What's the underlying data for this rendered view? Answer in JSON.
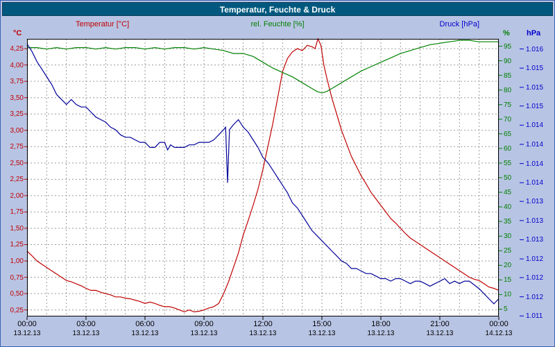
{
  "window": {
    "title": "Temperatur, Feuchte & Druck"
  },
  "chart_data": {
    "type": "line",
    "title": "Temperatur, Feuchte & Druck",
    "grid": true,
    "x_range": [
      0,
      24
    ],
    "axes": {
      "temperature": {
        "title": "Temperatur [°C]",
        "unit": "°C",
        "color": "#c00000",
        "range": [
          0.15,
          4.4
        ],
        "tick_labels": [
          "4,25",
          "4,00",
          "3,75",
          "3,50",
          "3,25",
          "3,00",
          "2,75",
          "2,50",
          "2,25",
          "2,00",
          "1,75",
          "1,50",
          "1,25",
          "1,00",
          "0,75",
          "0,50",
          "0,25"
        ],
        "tick_values": [
          4.25,
          4,
          3.75,
          3.5,
          3.25,
          3,
          2.75,
          2.5,
          2.25,
          2,
          1.75,
          1.5,
          1.25,
          1,
          0.75,
          0.5,
          0.25
        ]
      },
      "humidity": {
        "title": "rel. Feuchte [%]",
        "unit": "%",
        "color": "#008000",
        "range": [
          2.5,
          97.5
        ],
        "tick_labels": [
          "95",
          "90",
          "85",
          "80",
          "75",
          "70",
          "65",
          "60",
          "55",
          "50",
          "45",
          "40",
          "35",
          "30",
          "25",
          "20",
          "15",
          "10",
          "5"
        ],
        "tick_values": [
          95,
          90,
          85,
          80,
          75,
          70,
          65,
          60,
          55,
          50,
          45,
          40,
          35,
          30,
          25,
          20,
          15,
          10,
          5
        ]
      },
      "pressure": {
        "title": "Druck [hPa]",
        "unit": "hPa",
        "color": "#0000cc",
        "range": [
          1010.85,
          1016.35
        ],
        "tick_labels": [
          "1.016",
          "1.015",
          "1.015",
          "1.015",
          "1.014",
          "1.014",
          "1.014",
          "1.014",
          "1.013",
          "1.013",
          "1.013",
          "1.012",
          "1.012",
          "1.012",
          "1.011"
        ],
        "tick_values": [
          1016.15,
          1015.77,
          1015.39,
          1015.02,
          1014.64,
          1014.26,
          1013.88,
          1013.5,
          1013.13,
          1012.75,
          1012.37,
          1011.99,
          1011.62,
          1011.24,
          1010.86
        ]
      },
      "time": {
        "tick_hours": [
          0,
          3,
          6,
          9,
          12,
          15,
          18,
          21,
          24
        ],
        "tick_times": [
          "00:00",
          "03:00",
          "06:00",
          "09:00",
          "12:00",
          "15:00",
          "18:00",
          "21:00",
          "00:00"
        ],
        "tick_dates": [
          "13.12.13",
          "13.12.13",
          "13.12.13",
          "13.12.13",
          "13.12.13",
          "13.12.13",
          "13.12.13",
          "13.12.13",
          "14.12.13"
        ]
      }
    },
    "series": [
      {
        "name": "Temperatur",
        "axis": "temperature",
        "color": "#c00000",
        "points": [
          [
            0,
            1.15
          ],
          [
            0.25,
            1.08
          ],
          [
            0.5,
            1.0
          ],
          [
            0.75,
            0.95
          ],
          [
            1,
            0.9
          ],
          [
            1.25,
            0.85
          ],
          [
            1.5,
            0.8
          ],
          [
            1.75,
            0.75
          ],
          [
            2,
            0.7
          ],
          [
            2.25,
            0.68
          ],
          [
            2.5,
            0.65
          ],
          [
            2.75,
            0.62
          ],
          [
            3,
            0.58
          ],
          [
            3.25,
            0.55
          ],
          [
            3.5,
            0.55
          ],
          [
            3.75,
            0.52
          ],
          [
            4,
            0.5
          ],
          [
            4.25,
            0.48
          ],
          [
            4.5,
            0.45
          ],
          [
            4.75,
            0.45
          ],
          [
            5,
            0.43
          ],
          [
            5.25,
            0.42
          ],
          [
            5.5,
            0.4
          ],
          [
            5.75,
            0.38
          ],
          [
            6,
            0.35
          ],
          [
            6.25,
            0.37
          ],
          [
            6.5,
            0.35
          ],
          [
            6.75,
            0.32
          ],
          [
            7,
            0.3
          ],
          [
            7.25,
            0.3
          ],
          [
            7.5,
            0.28
          ],
          [
            7.75,
            0.25
          ],
          [
            8,
            0.22
          ],
          [
            8.25,
            0.25
          ],
          [
            8.5,
            0.22
          ],
          [
            8.75,
            0.23
          ],
          [
            9,
            0.25
          ],
          [
            9.25,
            0.28
          ],
          [
            9.5,
            0.3
          ],
          [
            9.75,
            0.35
          ],
          [
            10,
            0.5
          ],
          [
            10.25,
            0.68
          ],
          [
            10.5,
            0.9
          ],
          [
            10.75,
            1.12
          ],
          [
            11,
            1.4
          ],
          [
            11.25,
            1.62
          ],
          [
            11.5,
            1.85
          ],
          [
            11.75,
            2.1
          ],
          [
            12,
            2.4
          ],
          [
            12.25,
            2.75
          ],
          [
            12.5,
            3.1
          ],
          [
            12.75,
            3.5
          ],
          [
            13,
            3.9
          ],
          [
            13.25,
            4.1
          ],
          [
            13.5,
            4.2
          ],
          [
            13.75,
            4.25
          ],
          [
            14,
            4.22
          ],
          [
            14.25,
            4.3
          ],
          [
            14.5,
            4.28
          ],
          [
            14.65,
            4.25
          ],
          [
            14.8,
            4.4
          ],
          [
            14.95,
            4.3
          ],
          [
            15.1,
            4.0
          ],
          [
            15.25,
            3.8
          ],
          [
            15.5,
            3.5
          ],
          [
            15.75,
            3.25
          ],
          [
            16,
            3.0
          ],
          [
            16.25,
            2.8
          ],
          [
            16.5,
            2.6
          ],
          [
            16.75,
            2.45
          ],
          [
            17,
            2.3
          ],
          [
            17.25,
            2.18
          ],
          [
            17.5,
            2.05
          ],
          [
            17.75,
            1.95
          ],
          [
            18,
            1.85
          ],
          [
            18.25,
            1.75
          ],
          [
            18.5,
            1.65
          ],
          [
            18.75,
            1.58
          ],
          [
            19,
            1.5
          ],
          [
            19.25,
            1.42
          ],
          [
            19.5,
            1.35
          ],
          [
            19.75,
            1.3
          ],
          [
            20,
            1.25
          ],
          [
            20.25,
            1.2
          ],
          [
            20.5,
            1.15
          ],
          [
            20.75,
            1.1
          ],
          [
            21,
            1.05
          ],
          [
            21.25,
            1.0
          ],
          [
            21.5,
            0.95
          ],
          [
            21.75,
            0.9
          ],
          [
            22,
            0.85
          ],
          [
            22.25,
            0.8
          ],
          [
            22.5,
            0.75
          ],
          [
            22.75,
            0.72
          ],
          [
            23,
            0.7
          ],
          [
            23.25,
            0.65
          ],
          [
            23.5,
            0.6
          ],
          [
            23.75,
            0.58
          ],
          [
            24,
            0.55
          ]
        ]
      },
      {
        "name": "rel. Feuchte",
        "axis": "humidity",
        "color": "#008000",
        "points": [
          [
            0,
            94.5
          ],
          [
            0.5,
            94.5
          ],
          [
            1,
            94
          ],
          [
            1.5,
            94.5
          ],
          [
            2,
            94
          ],
          [
            2.5,
            94.5
          ],
          [
            3,
            94.5
          ],
          [
            3.5,
            94
          ],
          [
            4,
            94.5
          ],
          [
            4.5,
            94
          ],
          [
            5,
            94.5
          ],
          [
            5.5,
            94.5
          ],
          [
            6,
            94
          ],
          [
            6.5,
            94.5
          ],
          [
            7,
            94
          ],
          [
            7.5,
            94.5
          ],
          [
            8,
            94.5
          ],
          [
            8.5,
            94
          ],
          [
            9,
            94.5
          ],
          [
            9.5,
            94
          ],
          [
            10,
            93.5
          ],
          [
            10.5,
            92.5
          ],
          [
            11,
            92.5
          ],
          [
            11.5,
            91.5
          ],
          [
            12,
            89.5
          ],
          [
            12.5,
            87.5
          ],
          [
            13,
            86
          ],
          [
            13.5,
            84.5
          ],
          [
            14,
            82.5
          ],
          [
            14.5,
            80.5
          ],
          [
            14.75,
            79.5
          ],
          [
            15,
            79
          ],
          [
            15.25,
            79.5
          ],
          [
            15.5,
            80.5
          ],
          [
            16,
            82.5
          ],
          [
            16.5,
            84.5
          ],
          [
            17,
            86.5
          ],
          [
            17.5,
            88
          ],
          [
            18,
            89.5
          ],
          [
            18.5,
            91
          ],
          [
            19,
            92.5
          ],
          [
            19.5,
            93.5
          ],
          [
            20,
            94.5
          ],
          [
            20.5,
            95.5
          ],
          [
            21,
            96
          ],
          [
            21.5,
            96.5
          ],
          [
            22,
            97
          ],
          [
            22.5,
            97
          ],
          [
            23,
            96.5
          ],
          [
            23.5,
            96.5
          ],
          [
            24,
            96.5
          ]
        ]
      },
      {
        "name": "Druck",
        "axis": "pressure",
        "color": "#000099",
        "points": [
          [
            0,
            1016.25
          ],
          [
            0.25,
            1016.1
          ],
          [
            0.5,
            1015.9
          ],
          [
            0.75,
            1015.75
          ],
          [
            1,
            1015.6
          ],
          [
            1.25,
            1015.45
          ],
          [
            1.5,
            1015.25
          ],
          [
            1.75,
            1015.15
          ],
          [
            2,
            1015.05
          ],
          [
            2.25,
            1015.15
          ],
          [
            2.5,
            1015.05
          ],
          [
            2.75,
            1015.0
          ],
          [
            3,
            1015.0
          ],
          [
            3.25,
            1014.9
          ],
          [
            3.5,
            1014.8
          ],
          [
            3.75,
            1014.75
          ],
          [
            4,
            1014.7
          ],
          [
            4.25,
            1014.6
          ],
          [
            4.5,
            1014.55
          ],
          [
            4.75,
            1014.45
          ],
          [
            5,
            1014.4
          ],
          [
            5.25,
            1014.4
          ],
          [
            5.5,
            1014.35
          ],
          [
            5.75,
            1014.3
          ],
          [
            6,
            1014.3
          ],
          [
            6.25,
            1014.2
          ],
          [
            6.5,
            1014.2
          ],
          [
            6.75,
            1014.3
          ],
          [
            7,
            1014.3
          ],
          [
            7.15,
            1014.15
          ],
          [
            7.3,
            1014.25
          ],
          [
            7.5,
            1014.2
          ],
          [
            7.75,
            1014.2
          ],
          [
            8,
            1014.2
          ],
          [
            8.25,
            1014.25
          ],
          [
            8.5,
            1014.25
          ],
          [
            8.75,
            1014.3
          ],
          [
            9,
            1014.3
          ],
          [
            9.25,
            1014.3
          ],
          [
            9.5,
            1014.35
          ],
          [
            9.75,
            1014.45
          ],
          [
            10,
            1014.55
          ],
          [
            10.1,
            1014.6
          ],
          [
            10.2,
            1013.5
          ],
          [
            10.3,
            1014.55
          ],
          [
            10.5,
            1014.65
          ],
          [
            10.75,
            1014.75
          ],
          [
            11,
            1014.6
          ],
          [
            11.25,
            1014.5
          ],
          [
            11.5,
            1014.35
          ],
          [
            11.75,
            1014.2
          ],
          [
            12,
            1014.0
          ],
          [
            12.25,
            1013.9
          ],
          [
            12.5,
            1013.75
          ],
          [
            12.75,
            1013.6
          ],
          [
            13,
            1013.45
          ],
          [
            13.25,
            1013.3
          ],
          [
            13.5,
            1013.1
          ],
          [
            13.75,
            1013.0
          ],
          [
            14,
            1012.85
          ],
          [
            14.25,
            1012.7
          ],
          [
            14.5,
            1012.55
          ],
          [
            14.75,
            1012.45
          ],
          [
            15,
            1012.35
          ],
          [
            15.25,
            1012.25
          ],
          [
            15.5,
            1012.15
          ],
          [
            15.75,
            1012.05
          ],
          [
            16,
            1011.95
          ],
          [
            16.25,
            1011.9
          ],
          [
            16.5,
            1011.8
          ],
          [
            16.75,
            1011.8
          ],
          [
            17,
            1011.75
          ],
          [
            17.25,
            1011.7
          ],
          [
            17.5,
            1011.7
          ],
          [
            17.75,
            1011.65
          ],
          [
            18,
            1011.6
          ],
          [
            18.25,
            1011.6
          ],
          [
            18.5,
            1011.55
          ],
          [
            18.75,
            1011.6
          ],
          [
            19,
            1011.6
          ],
          [
            19.25,
            1011.55
          ],
          [
            19.5,
            1011.5
          ],
          [
            19.75,
            1011.55
          ],
          [
            20,
            1011.55
          ],
          [
            20.25,
            1011.5
          ],
          [
            20.5,
            1011.45
          ],
          [
            20.75,
            1011.5
          ],
          [
            21,
            1011.55
          ],
          [
            21.25,
            1011.6
          ],
          [
            21.5,
            1011.5
          ],
          [
            21.75,
            1011.55
          ],
          [
            22,
            1011.5
          ],
          [
            22.25,
            1011.55
          ],
          [
            22.5,
            1011.55
          ],
          [
            23,
            1011.4
          ],
          [
            23.25,
            1011.3
          ],
          [
            23.5,
            1011.2
          ],
          [
            23.75,
            1011.1
          ],
          [
            24,
            1011.2
          ]
        ]
      }
    ]
  }
}
